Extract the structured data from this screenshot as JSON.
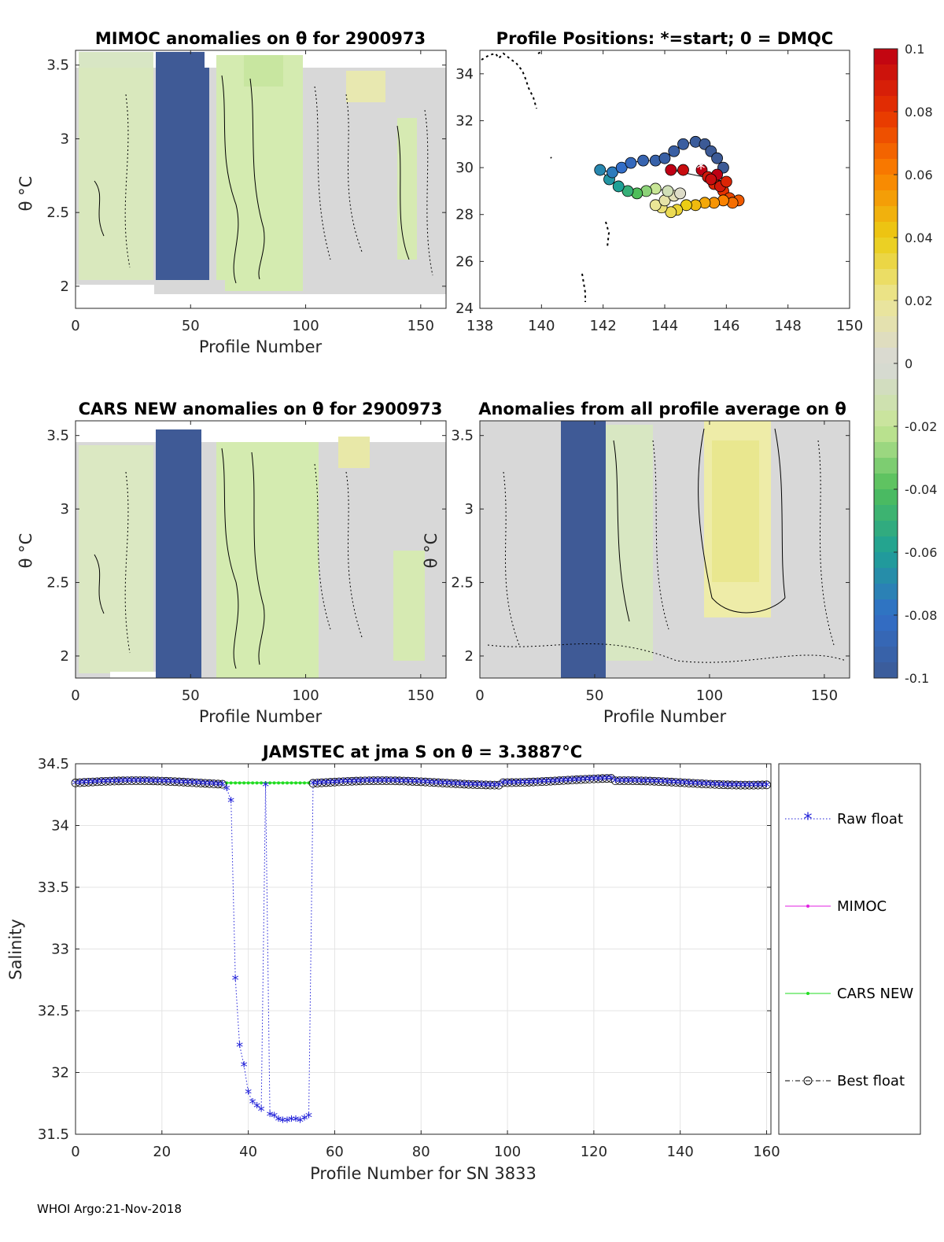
{
  "colors": {
    "neutral": "#d8d8d8",
    "green": "#d6ecb0",
    "green2": "#c4e39a",
    "yellow": "#eeeea0",
    "yellow2": "#e6e57e",
    "blue": "#3f5a96",
    "raw": "#1f1fd8",
    "mimoc": "#e020e0",
    "cars": "#22dd22",
    "best": "#000000"
  },
  "footer": "WHOI Argo:21-Nov-2018",
  "chart_data": [
    {
      "id": "mimoc",
      "type": "heatmap",
      "title": "MIMOC anomalies on θ  for 2900973",
      "xlabel": "Profile Number",
      "ylabel": "θ °C",
      "xlim": [
        0,
        161
      ],
      "ylim": [
        1.85,
        3.6
      ],
      "xticks": [
        {
          "v": 0,
          "t": "0"
        },
        {
          "v": 50,
          "t": "50"
        },
        {
          "v": 100,
          "t": "100"
        },
        {
          "v": 150,
          "t": "150"
        }
      ],
      "yticks": [
        {
          "v": 2,
          "t": "2"
        },
        {
          "v": 2.5,
          "t": "2.5"
        },
        {
          "v": 3,
          "t": "3"
        },
        {
          "v": 3.5,
          "t": "3.5"
        }
      ],
      "note": "approximate anomaly bands: green ≈ -0.02, blue ≈ -0.1 (profiles 36–55)"
    },
    {
      "id": "positions",
      "type": "scatter",
      "title": "Profile Positions: *=start; 0 = DMQC",
      "xlim": [
        138,
        150
      ],
      "ylim": [
        24,
        35
      ],
      "xticks": [
        {
          "v": 138,
          "t": "138"
        },
        {
          "v": 140,
          "t": "140"
        },
        {
          "v": 142,
          "t": "142"
        },
        {
          "v": 144,
          "t": "144"
        },
        {
          "v": 146,
          "t": "146"
        },
        {
          "v": 148,
          "t": "148"
        },
        {
          "v": 150,
          "t": "150"
        }
      ],
      "yticks": [
        {
          "v": 24,
          "t": "24"
        },
        {
          "v": 26,
          "t": "26"
        },
        {
          "v": 28,
          "t": "28"
        },
        {
          "v": 30,
          "t": "30"
        },
        {
          "v": 32,
          "t": "32"
        },
        {
          "v": 34,
          "t": "34"
        }
      ],
      "start": [
        145.2,
        29.9
      ],
      "track_note": "approximate float positions colored by salinity anomaly"
    },
    {
      "id": "cars",
      "type": "heatmap",
      "title": "CARS NEW anomalies on θ for 2900973",
      "xlabel": "Profile Number",
      "ylabel": "θ °C",
      "xlim": [
        0,
        161
      ],
      "ylim": [
        1.85,
        3.6
      ],
      "xticks": [
        {
          "v": 0,
          "t": "0"
        },
        {
          "v": 50,
          "t": "50"
        },
        {
          "v": 100,
          "t": "100"
        },
        {
          "v": 150,
          "t": "150"
        }
      ],
      "yticks": [
        {
          "v": 2,
          "t": "2"
        },
        {
          "v": 2.5,
          "t": "2.5"
        },
        {
          "v": 3,
          "t": "3"
        },
        {
          "v": 3.5,
          "t": "3.5"
        }
      ]
    },
    {
      "id": "allavg",
      "type": "heatmap",
      "title": "Anomalies from all profile average on θ",
      "xlabel": "Profile Number",
      "ylabel": "θ °C",
      "xlim": [
        0,
        161
      ],
      "ylim": [
        1.85,
        3.6
      ],
      "xticks": [
        {
          "v": 0,
          "t": "0"
        },
        {
          "v": 50,
          "t": "50"
        },
        {
          "v": 100,
          "t": "100"
        },
        {
          "v": 150,
          "t": "150"
        }
      ],
      "yticks": [
        {
          "v": 2,
          "t": "2"
        },
        {
          "v": 2.5,
          "t": "2.5"
        },
        {
          "v": 3,
          "t": "3"
        },
        {
          "v": 3.5,
          "t": "3.5"
        }
      ]
    },
    {
      "id": "colorbar",
      "type": "colorbar",
      "range": [
        -0.1,
        0.1
      ],
      "ticks": [
        {
          "v": 0.1,
          "t": "0.1"
        },
        {
          "v": 0.08,
          "t": "0.08"
        },
        {
          "v": 0.06,
          "t": "0.06"
        },
        {
          "v": 0.04,
          "t": "0.04"
        },
        {
          "v": 0.02,
          "t": "0.02"
        },
        {
          "v": 0,
          "t": "0"
        },
        {
          "v": -0.02,
          "t": "-0.02"
        },
        {
          "v": -0.04,
          "t": "-0.04"
        },
        {
          "v": -0.06,
          "t": "-0.06"
        },
        {
          "v": -0.08,
          "t": "-0.08"
        },
        {
          "v": -0.1,
          "t": "-0.1"
        }
      ]
    },
    {
      "id": "salinity",
      "type": "line",
      "title": "JAMSTEC at jma S on θ = 3.3887°C",
      "xlabel": "Profile Number for SN 3833",
      "ylabel": "Salinity",
      "xlim": [
        0,
        161
      ],
      "ylim": [
        31.5,
        34.5
      ],
      "xticks": [
        {
          "v": 0,
          "t": "0"
        },
        {
          "v": 20,
          "t": "20"
        },
        {
          "v": 40,
          "t": "40"
        },
        {
          "v": 60,
          "t": "60"
        },
        {
          "v": 80,
          "t": "80"
        },
        {
          "v": 100,
          "t": "100"
        },
        {
          "v": 120,
          "t": "120"
        },
        {
          "v": 140,
          "t": "140"
        },
        {
          "v": 160,
          "t": "160"
        }
      ],
      "yticks": [
        {
          "v": 31.5,
          "t": "31.5"
        },
        {
          "v": 32,
          "t": "32"
        },
        {
          "v": 32.5,
          "t": "32.5"
        },
        {
          "v": 33,
          "t": "33"
        },
        {
          "v": 33.5,
          "t": "33.5"
        },
        {
          "v": 34,
          "t": "34"
        },
        {
          "v": 34.5,
          "t": "34.5"
        }
      ],
      "legend": [
        "Raw float",
        "MIMOC",
        "CARS NEW",
        "Best float"
      ],
      "legend_position": "outside-right",
      "dip_profiles": [
        35,
        36,
        37,
        38,
        39,
        40,
        41,
        42,
        43,
        45,
        46,
        47,
        48,
        49,
        50,
        51,
        52,
        53,
        54
      ],
      "dip_values": [
        34.3,
        34.2,
        32.76,
        32.22,
        32.06,
        31.84,
        31.76,
        31.73,
        31.7,
        31.66,
        31.65,
        31.62,
        31.61,
        31.61,
        31.62,
        31.62,
        31.61,
        31.63,
        31.65
      ],
      "baseline_note": "approximate: salinity ≈ 34.33–34.37 for all other profiles; CARS NEW ≈ 34.34"
    }
  ]
}
